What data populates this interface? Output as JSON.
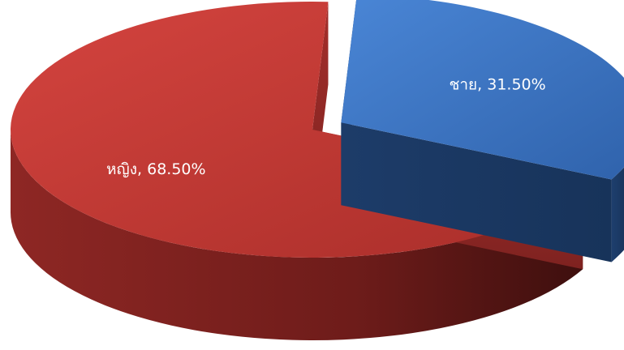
{
  "chart_data": {
    "type": "pie",
    "style": "3d-exploded",
    "series": [
      {
        "name": "",
        "categories": [
          "ชาย",
          "หญิง"
        ],
        "values": [
          31.5,
          68.5
        ]
      }
    ],
    "data_labels": [
      {
        "category": "ชาย",
        "text": "ชาย, 31.50%",
        "color": "#3d78c7"
      },
      {
        "category": "หญิง",
        "text": "หญิง, 68.50%",
        "color": "#c23a36"
      }
    ],
    "legend": "none",
    "title": ""
  }
}
